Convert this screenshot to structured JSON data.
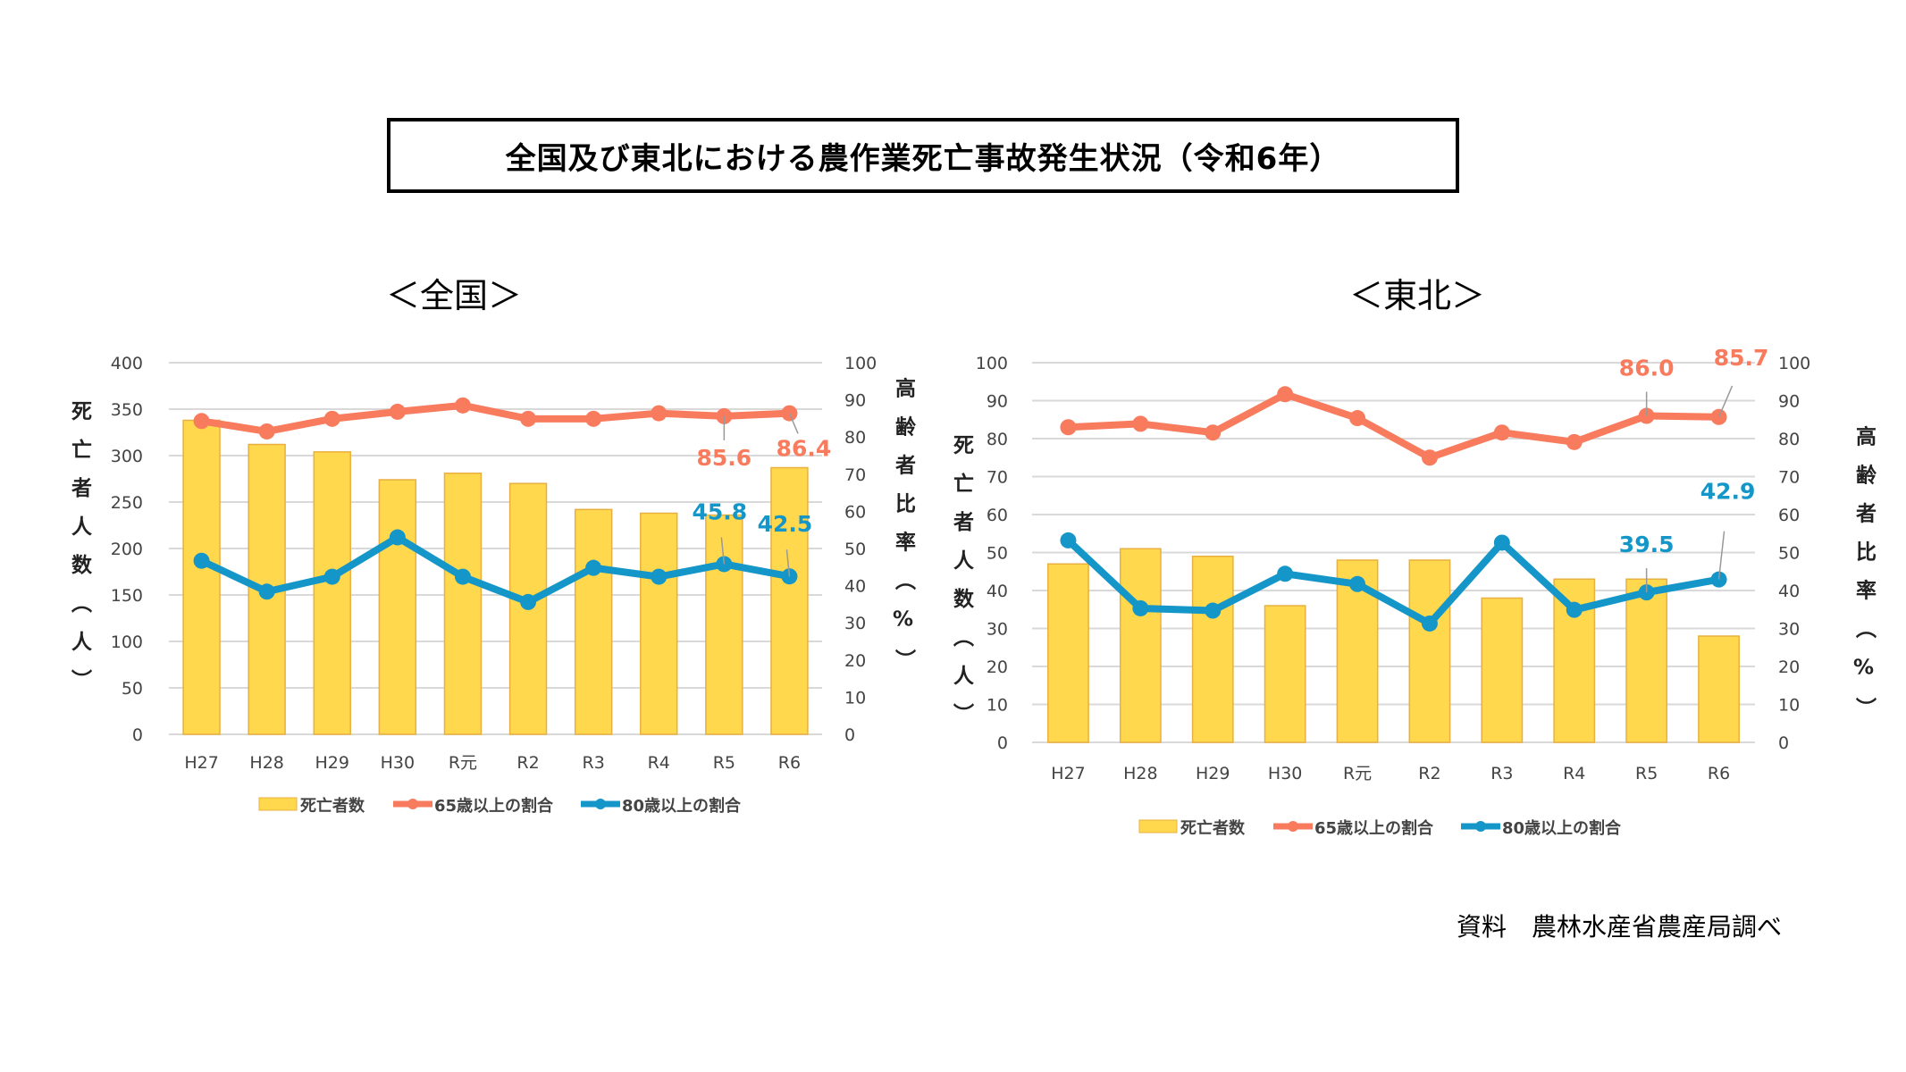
{
  "title": "全国及び東北における農作業死亡事故発生状況（令和6年）",
  "source": "資料　農林水産省農産局調べ",
  "colors": {
    "bar": "#FFD84D",
    "bar_edge": "#E8B040",
    "s65": "#F87B5E",
    "s80": "#1596C8",
    "grid": "#D9D9D9"
  },
  "chart_data": [
    {
      "type": "bar+line",
      "subtitle": "＜全国＞",
      "categories": [
        "H27",
        "H28",
        "H29",
        "H30",
        "R元",
        "R2",
        "R3",
        "R4",
        "R5",
        "R6"
      ],
      "ylabel_left": "死亡者人数（人）",
      "ylabel_right": "高齢者比率（%）",
      "ylim_left": [
        0,
        400
      ],
      "yticks_left": [
        0,
        50,
        100,
        150,
        200,
        250,
        300,
        350,
        400
      ],
      "ylim_right": [
        0,
        100
      ],
      "yticks_right": [
        0,
        10,
        20,
        30,
        40,
        50,
        60,
        70,
        80,
        90,
        100
      ],
      "grid": true,
      "legend_placement": "bottom",
      "series": [
        {
          "name": "死亡者数",
          "type": "bar",
          "axis": "left",
          "values": [
            338,
            312,
            304,
            274,
            281,
            270,
            242,
            238,
            236,
            287
          ]
        },
        {
          "name": "65歳以上の割合",
          "type": "line",
          "axis": "right",
          "values": [
            84.3,
            81.5,
            84.9,
            86.8,
            88.5,
            84.9,
            84.9,
            86.4,
            85.6,
            86.4
          ]
        },
        {
          "name": "80歳以上の割合",
          "type": "line",
          "axis": "right",
          "values": [
            46.7,
            38.4,
            42.4,
            53.0,
            42.4,
            35.6,
            44.8,
            42.4,
            45.8,
            42.5
          ]
        }
      ],
      "annotations": [
        {
          "series": 1,
          "category": "R5",
          "text": "85.6"
        },
        {
          "series": 1,
          "category": "R6",
          "text": "86.4"
        },
        {
          "series": 2,
          "category": "R5",
          "text": "45.8"
        },
        {
          "series": 2,
          "category": "R6",
          "text": "42.5"
        }
      ]
    },
    {
      "type": "bar+line",
      "subtitle": "＜東北＞",
      "categories": [
        "H27",
        "H28",
        "H29",
        "H30",
        "R元",
        "R2",
        "R3",
        "R4",
        "R5",
        "R6"
      ],
      "ylabel_left": "死亡者人数（人）",
      "ylabel_right": "高齢者比率（%）",
      "ylim_left": [
        0,
        100
      ],
      "yticks_left": [
        0,
        10,
        20,
        30,
        40,
        50,
        60,
        70,
        80,
        90,
        100
      ],
      "ylim_right": [
        0,
        100
      ],
      "yticks_right": [
        0,
        10,
        20,
        30,
        40,
        50,
        60,
        70,
        80,
        90,
        100
      ],
      "grid": true,
      "legend_placement": "bottom",
      "series": [
        {
          "name": "死亡者数",
          "type": "bar",
          "axis": "left",
          "values": [
            47,
            51,
            49,
            36,
            48,
            48,
            38,
            43,
            43,
            28
          ]
        },
        {
          "name": "65歳以上の割合",
          "type": "line",
          "axis": "right",
          "values": [
            83.0,
            83.9,
            81.6,
            91.7,
            85.4,
            75.0,
            81.6,
            79.1,
            86.0,
            85.7
          ]
        },
        {
          "name": "80歳以上の割合",
          "type": "line",
          "axis": "right",
          "values": [
            53.2,
            35.3,
            34.7,
            44.4,
            41.7,
            31.3,
            52.6,
            34.9,
            39.5,
            42.9
          ]
        }
      ],
      "annotations": [
        {
          "series": 1,
          "category": "R5",
          "text": "86.0"
        },
        {
          "series": 1,
          "category": "R6",
          "text": "85.7"
        },
        {
          "series": 2,
          "category": "R5",
          "text": "39.5"
        },
        {
          "series": 2,
          "category": "R6",
          "text": "42.9"
        }
      ]
    }
  ]
}
